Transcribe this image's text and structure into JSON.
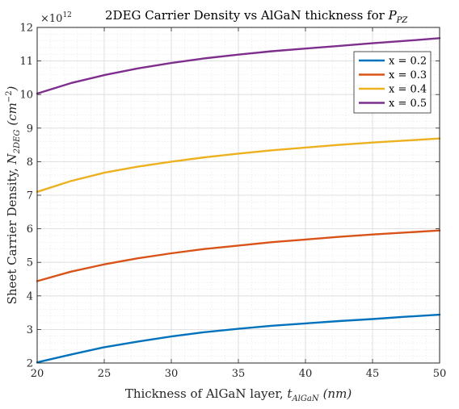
{
  "chart_data": {
    "type": "line",
    "title_prefix": "2DEG Carrier Density vs AlGaN thickness for ",
    "title_math": "P",
    "title_math_sub": "PZ",
    "exponent_label": "×10",
    "exponent_power": "12",
    "xlabel_text": "Thickness of AlGaN layer, ",
    "xlabel_math": "t",
    "xlabel_math_sub": "AlGaN",
    "xlabel_unit": "(nm)",
    "ylabel_text": "Sheet Carrier Density, ",
    "ylabel_math": "N",
    "ylabel_math_sub": "2DEG",
    "ylabel_unit_open": "(cm",
    "ylabel_unit_sup": "−2",
    "ylabel_unit_close": ")",
    "xlim": [
      20,
      50
    ],
    "ylim": [
      2,
      12
    ],
    "xticks": [
      "20",
      "25",
      "30",
      "35",
      "40",
      "45",
      "50"
    ],
    "yticks": [
      "2",
      "3",
      "4",
      "5",
      "6",
      "7",
      "8",
      "9",
      "10",
      "11",
      "12"
    ],
    "grid": true,
    "minor_grid": true,
    "legend_position": "top-right",
    "x": [
      20,
      22.5,
      25,
      27.5,
      30,
      32.5,
      35,
      37.5,
      40,
      42.5,
      45,
      47.5,
      50
    ],
    "series": [
      {
        "name": "x = 0.2",
        "color": "#0072BD",
        "values": [
          2.02,
          2.25,
          2.47,
          2.64,
          2.79,
          2.92,
          3.02,
          3.11,
          3.18,
          3.25,
          3.31,
          3.38,
          3.44
        ]
      },
      {
        "name": "x = 0.3",
        "color": "#D95319",
        "values": [
          4.44,
          4.72,
          4.94,
          5.12,
          5.27,
          5.4,
          5.5,
          5.6,
          5.68,
          5.76,
          5.83,
          5.89,
          5.95
        ]
      },
      {
        "name": "x = 0.4",
        "color": "#EDB120",
        "values": [
          7.1,
          7.42,
          7.67,
          7.85,
          8.0,
          8.13,
          8.24,
          8.34,
          8.42,
          8.5,
          8.57,
          8.63,
          8.69
        ]
      },
      {
        "name": "x = 0.5",
        "color": "#7E2F8E",
        "values": [
          10.03,
          10.34,
          10.58,
          10.78,
          10.94,
          11.08,
          11.19,
          11.29,
          11.37,
          11.45,
          11.53,
          11.6,
          11.68
        ]
      }
    ]
  }
}
